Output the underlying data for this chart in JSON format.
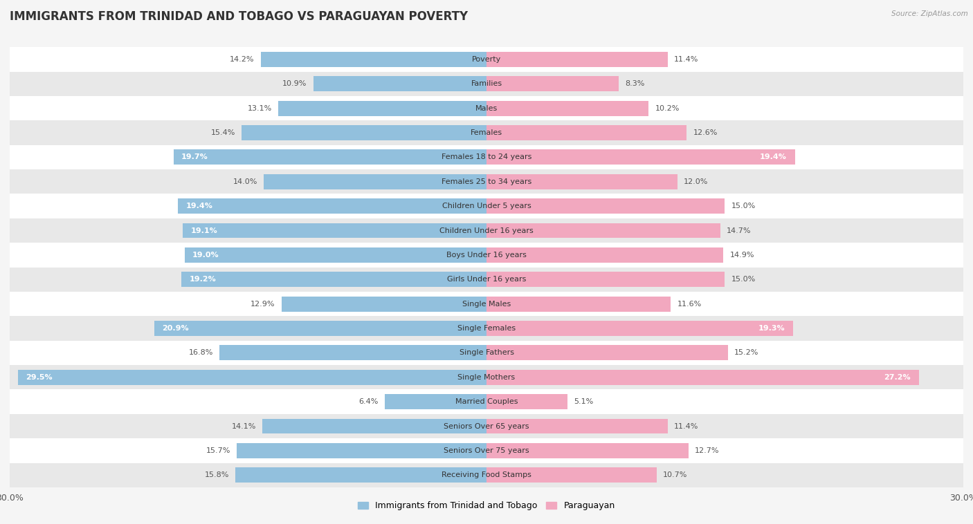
{
  "title": "IMMIGRANTS FROM TRINIDAD AND TOBAGO VS PARAGUAYAN POVERTY",
  "source": "Source: ZipAtlas.com",
  "categories": [
    "Poverty",
    "Families",
    "Males",
    "Females",
    "Females 18 to 24 years",
    "Females 25 to 34 years",
    "Children Under 5 years",
    "Children Under 16 years",
    "Boys Under 16 years",
    "Girls Under 16 years",
    "Single Males",
    "Single Females",
    "Single Fathers",
    "Single Mothers",
    "Married Couples",
    "Seniors Over 65 years",
    "Seniors Over 75 years",
    "Receiving Food Stamps"
  ],
  "left_values": [
    14.2,
    10.9,
    13.1,
    15.4,
    19.7,
    14.0,
    19.4,
    19.1,
    19.0,
    19.2,
    12.9,
    20.9,
    16.8,
    29.5,
    6.4,
    14.1,
    15.7,
    15.8
  ],
  "right_values": [
    11.4,
    8.3,
    10.2,
    12.6,
    19.4,
    12.0,
    15.0,
    14.7,
    14.9,
    15.0,
    11.6,
    19.3,
    15.2,
    27.2,
    5.1,
    11.4,
    12.7,
    10.7
  ],
  "left_color": "#92c0dd",
  "right_color": "#f2a8bf",
  "left_label": "Immigrants from Trinidad and Tobago",
  "right_label": "Paraguayan",
  "xlim": 30.0,
  "background_color": "#f5f5f5",
  "row_white": "#ffffff",
  "row_gray": "#e8e8e8",
  "title_fontsize": 12,
  "label_fontsize": 8,
  "value_fontsize": 8,
  "bar_height": 0.62,
  "white_threshold": 18.5
}
